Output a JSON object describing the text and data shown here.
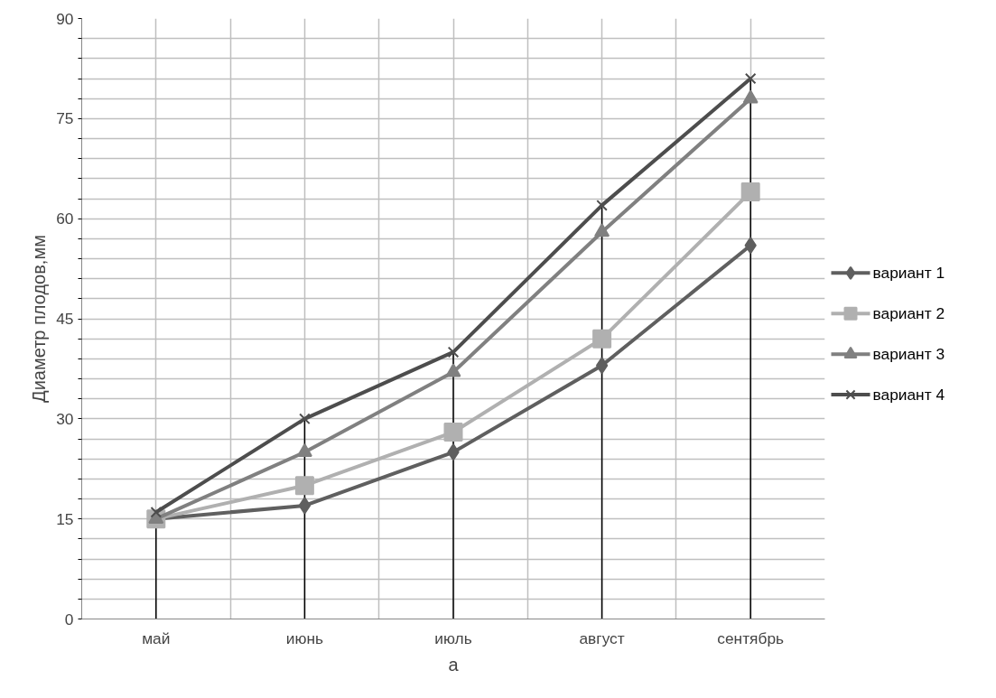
{
  "chart_data": {
    "type": "line",
    "ylabel": "Диаметр плодов,мм",
    "xlabel": "а",
    "categories": [
      "май",
      "июнь",
      "июль",
      "август",
      "сентябрь"
    ],
    "series": [
      {
        "name": "вариант 1",
        "color": "#5f5f5f",
        "marker": "diamond",
        "values": [
          15,
          17,
          25,
          38,
          56
        ]
      },
      {
        "name": "вариант 2",
        "color": "#b0b0b0",
        "marker": "square",
        "values": [
          15,
          20,
          28,
          42,
          64
        ]
      },
      {
        "name": "вариант 3",
        "color": "#808080",
        "marker": "triangle",
        "values": [
          15,
          25,
          37,
          58,
          78
        ]
      },
      {
        "name": "вариант 4",
        "color": "#4d4d4d",
        "marker": "cross",
        "values": [
          16,
          30,
          40,
          62,
          81
        ]
      }
    ],
    "ylim": [
      0,
      90
    ],
    "yticks": [
      0,
      {
        "value": 3,
        "label": null
      },
      {
        "value": 6,
        "label": null
      },
      {
        "value": 9,
        "label": null
      },
      {
        "value": 12,
        "label": null
      },
      15,
      {
        "value": 18,
        "label": null
      },
      {
        "value": 21,
        "label": null
      },
      {
        "value": 24,
        "label": null
      },
      {
        "value": 27,
        "label": null
      },
      30,
      {
        "value": 33,
        "label": null
      },
      {
        "value": 36,
        "label": null
      },
      {
        "value": 39,
        "label": null
      },
      {
        "value": 42,
        "label": null
      },
      45,
      {
        "value": 48,
        "label": null
      },
      {
        "value": 51,
        "label": null
      },
      {
        "value": 54,
        "label": null
      },
      {
        "value": 57,
        "label": null
      },
      60,
      {
        "value": 63,
        "label": null
      },
      {
        "value": 66,
        "label": null
      },
      {
        "value": 69,
        "label": null
      },
      {
        "value": 72,
        "label": null
      },
      75,
      {
        "value": 78,
        "label": null
      },
      {
        "value": 81,
        "label": null
      },
      {
        "value": 84,
        "label": null
      },
      {
        "value": 87,
        "label": null
      },
      90
    ],
    "ref_lines": [
      {
        "axis": "x",
        "value": "май",
        "color": "#000000"
      },
      {
        "axis": "x",
        "value": "июнь",
        "color": "#000000"
      },
      {
        "axis": "x",
        "value": "июль",
        "color": "#000000"
      },
      {
        "axis": "x",
        "value": "август",
        "color": "#000000"
      },
      {
        "axis": "x",
        "value": "сентябрь",
        "color": "#000000"
      }
    ],
    "grid": true,
    "legend": "right",
    "line_style": "solid"
  }
}
